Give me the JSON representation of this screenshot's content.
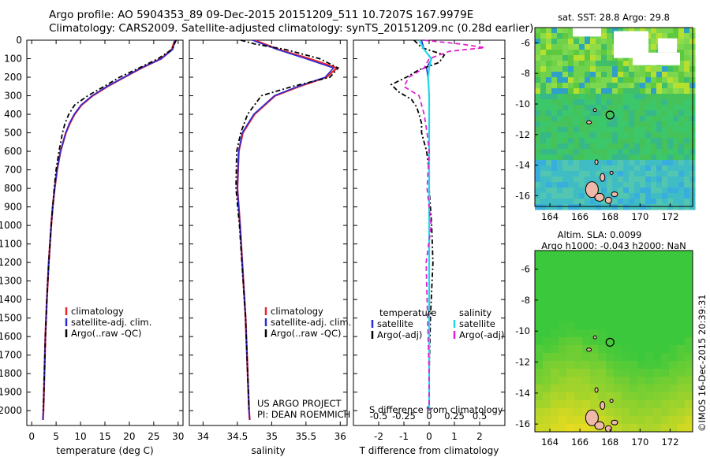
{
  "header": {
    "line1": "Argo profile: AO 5904353_89 09-Dec-2015 20151209_511 10.7207S 167.9979E",
    "line2": "Climatology: CARS2009. Satellite-adjusted climatology: synTS_20151209.nc (0.28d earlier)"
  },
  "colors": {
    "clim": "#e8252b",
    "sat": "#2b2bd8",
    "argo": "#000000",
    "sat_s": "#22d8e8",
    "argo_s": "#e020d0"
  },
  "chart_data": [
    {
      "id": "temperature",
      "type": "line",
      "xlabel": "temperature (deg C)",
      "xlim": [
        -1,
        31
      ],
      "xticks": [
        0,
        5,
        10,
        15,
        20,
        25,
        30
      ],
      "ylim": [
        0,
        2080
      ],
      "yticks": [
        0,
        100,
        200,
        300,
        400,
        500,
        600,
        700,
        800,
        900,
        1000,
        1100,
        1200,
        1300,
        1400,
        1500,
        1600,
        1700,
        1800,
        1900,
        2000
      ],
      "legend": [
        "climatology",
        "satellite-adj. clim.",
        "Argo(..raw -QC)"
      ],
      "series": [
        {
          "name": "climatology",
          "depth": [
            0,
            50,
            100,
            150,
            200,
            250,
            300,
            350,
            400,
            450,
            500,
            600,
            700,
            800,
            900,
            1000,
            1200,
            1400,
            1600,
            1800,
            2000,
            2050
          ],
          "values": [
            29.3,
            28.7,
            26.5,
            22.5,
            19.0,
            15.5,
            12.5,
            10.2,
            8.8,
            7.8,
            7.0,
            5.9,
            5.2,
            4.7,
            4.3,
            4.0,
            3.5,
            3.1,
            2.8,
            2.6,
            2.4,
            2.3
          ]
        },
        {
          "name": "satellite-adj. clim.",
          "depth": [
            0,
            50,
            100,
            150,
            200,
            250,
            300,
            350,
            400,
            450,
            500,
            600,
            700,
            800,
            900,
            1000,
            1200,
            1400,
            1600,
            1800,
            2000,
            2050
          ],
          "values": [
            29.4,
            28.9,
            26.6,
            22.4,
            18.9,
            15.4,
            12.4,
            10.1,
            8.7,
            7.7,
            7.0,
            5.9,
            5.2,
            4.7,
            4.3,
            4.0,
            3.5,
            3.1,
            2.8,
            2.6,
            2.4,
            2.3
          ]
        },
        {
          "name": "Argo(..raw -QC)",
          "depth": [
            0,
            50,
            100,
            150,
            200,
            250,
            300,
            350,
            400,
            450,
            500,
            600,
            700,
            800,
            900,
            1000,
            1200,
            1400,
            1600,
            1800,
            2000
          ],
          "values": [
            29.6,
            28.7,
            25.9,
            22.0,
            18.0,
            14.8,
            11.5,
            8.8,
            7.6,
            6.8,
            6.3,
            5.6,
            5.0,
            4.6,
            4.3,
            4.0,
            3.5,
            3.1,
            2.8,
            2.6,
            2.4
          ]
        }
      ]
    },
    {
      "id": "salinity",
      "type": "line",
      "xlabel": "salinity",
      "xlim": [
        33.8,
        36.1
      ],
      "xticks": [
        34,
        34.5,
        35,
        35.5,
        36
      ],
      "ylim": [
        0,
        2080
      ],
      "legend": [
        "climatology",
        "satellite-adj. clim.",
        "Argo(..raw -QC)"
      ],
      "annotation": [
        "US ARGO PROJECT",
        "PI: DEAN ROEMMICH"
      ],
      "series": [
        {
          "name": "climatology",
          "depth": [
            0,
            50,
            100,
            150,
            200,
            250,
            300,
            400,
            500,
            600,
            800,
            1000,
            1500,
            2000,
            2050
          ],
          "values": [
            34.75,
            35.1,
            35.55,
            35.95,
            35.8,
            35.4,
            35.05,
            34.75,
            34.58,
            34.52,
            34.5,
            34.54,
            34.62,
            34.67,
            34.68
          ]
        },
        {
          "name": "satellite-adj. clim.",
          "depth": [
            0,
            50,
            100,
            150,
            200,
            250,
            300,
            400,
            500,
            600,
            800,
            1000,
            1500,
            2000,
            2050
          ],
          "values": [
            34.72,
            35.08,
            35.5,
            35.9,
            35.78,
            35.38,
            35.04,
            34.74,
            34.57,
            34.52,
            34.5,
            34.54,
            34.62,
            34.67,
            34.68
          ]
        },
        {
          "name": "Argo(..raw -QC)",
          "depth": [
            0,
            20,
            50,
            100,
            150,
            200,
            250,
            300,
            400,
            500,
            600,
            800,
            1000,
            1500,
            2000
          ],
          "values": [
            34.55,
            34.75,
            35.2,
            35.7,
            35.97,
            35.85,
            35.3,
            34.85,
            34.65,
            34.55,
            34.49,
            34.48,
            34.53,
            34.62,
            34.67
          ]
        }
      ]
    },
    {
      "id": "difference",
      "type": "line",
      "xlabel": "T difference from climatology",
      "x2label": "S difference from climatology",
      "xlim": [
        -3,
        3
      ],
      "xticks": [
        -2,
        -1,
        0,
        1,
        2
      ],
      "sticks": [
        -0.5,
        -0.25,
        0,
        0.25,
        0.5
      ],
      "sticklabels": [
        "-0.5",
        "-0.25",
        "0",
        "0.25",
        "0.5"
      ],
      "ylim": [
        0,
        2080
      ],
      "legend_left_title": "temperature",
      "legend_right_title": "salinity",
      "legend_left": [
        "satellite",
        "Argo(-adj)"
      ],
      "legend_right": [
        "satellite",
        "Argo(-adj)"
      ],
      "series": [
        {
          "name": "T satellite",
          "depth": [
            0,
            50,
            100,
            150,
            200,
            300,
            500,
            800,
            1200,
            2000
          ],
          "values": [
            -0.3,
            -0.2,
            0.1,
            -0.1,
            -0.05,
            0,
            0,
            0,
            0,
            0
          ]
        },
        {
          "name": "T Argo(-adj)",
          "depth": [
            0,
            40,
            80,
            120,
            160,
            200,
            240,
            280,
            320,
            360,
            400,
            450,
            500,
            550,
            600,
            700,
            800,
            1000,
            1200,
            1500,
            1800,
            1950
          ],
          "values": [
            -0.6,
            -0.3,
            0.6,
            0.4,
            -0.4,
            -0.9,
            -1.5,
            -1.2,
            -0.7,
            -0.5,
            -0.4,
            -0.3,
            -0.3,
            -0.2,
            -0.1,
            0,
            0,
            0.1,
            0.15,
            0.05,
            0,
            0
          ]
        },
        {
          "name": "S satellite",
          "depth": [
            0,
            50,
            100,
            150,
            200,
            300,
            500,
            800,
            1200,
            2000
          ],
          "values": [
            -0.1,
            -0.05,
            0.02,
            0,
            -0.01,
            0,
            0,
            0,
            0,
            0
          ]
        },
        {
          "name": "S Argo(-adj)",
          "depth": [
            0,
            20,
            40,
            60,
            80,
            100,
            150,
            200,
            250,
            300,
            400,
            500,
            600,
            800,
            1000,
            1200,
            1400,
            1600,
            1800,
            2000
          ],
          "values": [
            -0.05,
            0.3,
            0.55,
            0.2,
            0.1,
            0.0,
            -0.05,
            -0.2,
            -0.25,
            -0.1,
            -0.05,
            -0.02,
            0,
            -0.02,
            0.02,
            -0.03,
            -0.02,
            -0.01,
            0,
            0
          ]
        }
      ]
    },
    {
      "id": "sst_map",
      "type": "heatmap",
      "title": "sat. SST: 28.8 Argo: 29.8",
      "xlim": [
        163,
        173.5
      ],
      "ylim": [
        -16.7,
        -5
      ],
      "xticks": [
        164,
        166,
        168,
        170,
        172
      ],
      "yticks": [
        -6,
        -8,
        -10,
        -12,
        -14,
        -16
      ],
      "argo_position": [
        168.0,
        -10.72
      ]
    },
    {
      "id": "sla_map",
      "type": "heatmap",
      "title1": "Altim. SLA: 0.0099",
      "title2": "Argo h1000: -0.043 h2000: NaN",
      "xlim": [
        163,
        173.5
      ],
      "ylim": [
        -16.5,
        -4.8
      ],
      "xticks": [
        164,
        166,
        168,
        170,
        172
      ],
      "yticks": [
        -6,
        -8,
        -10,
        -12,
        -14,
        -16
      ],
      "argo_position": [
        168.0,
        -10.72
      ]
    }
  ],
  "footer": {
    "imos": "©IMOS 16-Dec-2015 20:39:31"
  }
}
